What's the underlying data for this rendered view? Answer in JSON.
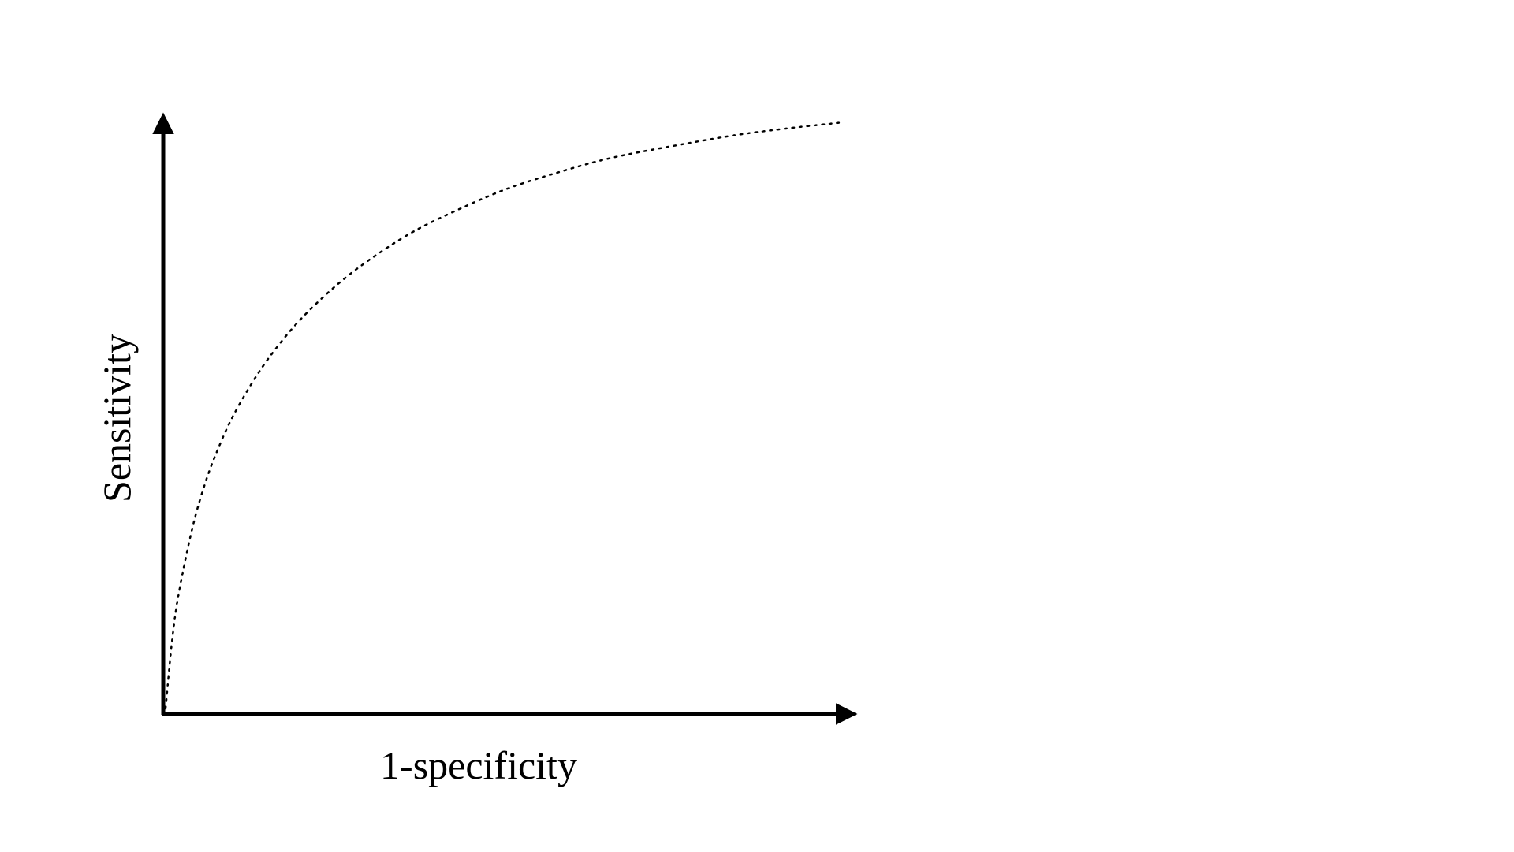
{
  "chart_data": {
    "type": "line",
    "title": "",
    "xlabel": "1-specificity",
    "ylabel": "Sensitivity",
    "xlim": [
      0,
      1
    ],
    "ylim": [
      0,
      1
    ],
    "grid": false,
    "legend": "none",
    "series": [
      {
        "style": "dotted",
        "color": "#000000",
        "x": [
          0,
          0.01,
          0.02,
          0.04,
          0.06,
          0.08,
          0.1,
          0.13,
          0.16,
          0.2,
          0.25,
          0.3,
          0.36,
          0.42,
          0.5,
          0.58,
          0.66,
          0.75,
          0.84,
          0.92,
          1.0
        ],
        "y": [
          0,
          0.12,
          0.2,
          0.31,
          0.39,
          0.45,
          0.5,
          0.56,
          0.61,
          0.665,
          0.72,
          0.765,
          0.81,
          0.845,
          0.885,
          0.915,
          0.94,
          0.96,
          0.978,
          0.99,
          1.0
        ]
      }
    ],
    "axis_color": "#000000"
  }
}
